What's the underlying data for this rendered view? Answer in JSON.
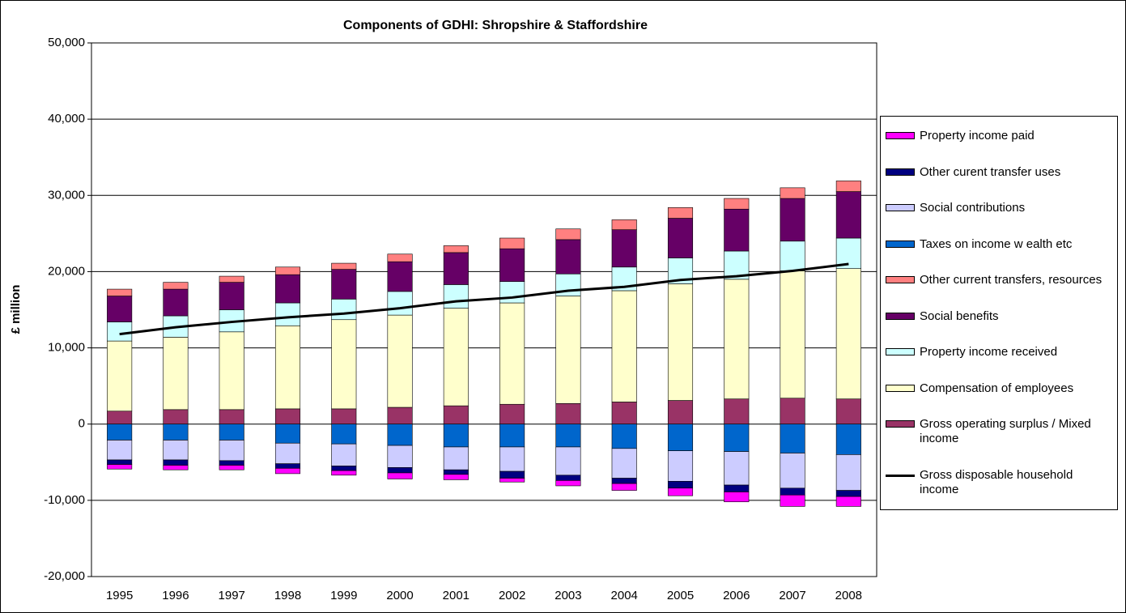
{
  "chart_data": {
    "type": "bar",
    "stacked": true,
    "title": "Components of GDHI: Shropshire & Staffordshire",
    "ylabel": "£ million",
    "categories": [
      "1995",
      "1996",
      "1997",
      "1998",
      "1999",
      "2000",
      "2001",
      "2002",
      "2003",
      "2004",
      "2005",
      "2006",
      "2007",
      "2008"
    ],
    "ylim": [
      -20000,
      50000
    ],
    "yticks": [
      {
        "value": -20000,
        "label": "-20,000"
      },
      {
        "value": -10000,
        "label": "-10,000"
      },
      0,
      {
        "value": 10000,
        "label": "10,000"
      },
      {
        "value": 20000,
        "label": "20,000"
      },
      {
        "value": 30000,
        "label": "30,000"
      },
      {
        "value": 40000,
        "label": "40,000"
      },
      {
        "value": 50000,
        "label": "50,000"
      }
    ],
    "grid": true,
    "legend": "right",
    "series": [
      {
        "name": "Property income paid",
        "color": "#ff00ff",
        "values": [
          -600,
          -600,
          -600,
          -700,
          -600,
          -800,
          -700,
          -500,
          -700,
          -900,
          -1000,
          -1300,
          -1500,
          -1300
        ]
      },
      {
        "name": "Other curent transfer uses",
        "color": "#000080",
        "values": [
          -600,
          -700,
          -600,
          -600,
          -600,
          -700,
          -600,
          -900,
          -700,
          -700,
          -900,
          -900,
          -900,
          -800
        ]
      },
      {
        "name": "Social contributions",
        "color": "#ccccff",
        "values": [
          -2600,
          -2600,
          -2700,
          -2700,
          -2900,
          -2900,
          -3000,
          -3200,
          -3700,
          -3900,
          -4000,
          -4400,
          -4600,
          -4700
        ]
      },
      {
        "name": "Taxes on income w ealth etc",
        "color": "#0066cc",
        "values": [
          -2100,
          -2100,
          -2100,
          -2500,
          -2600,
          -2800,
          -3000,
          -3000,
          -3000,
          -3200,
          -3500,
          -3600,
          -3800,
          -4000
        ]
      },
      {
        "name": "Other current transfers, resources",
        "color": "#ff8080",
        "values": [
          900,
          900,
          800,
          1000,
          800,
          1000,
          900,
          1400,
          1400,
          1300,
          1400,
          1400,
          1400,
          1400
        ]
      },
      {
        "name": "Social benefits",
        "color": "#660066",
        "values": [
          3400,
          3500,
          3600,
          3700,
          3900,
          3900,
          4200,
          4300,
          4500,
          4900,
          5200,
          5500,
          5600,
          6100
        ]
      },
      {
        "name": "Property income received",
        "color": "#ccffff",
        "values": [
          2500,
          2800,
          2900,
          3000,
          2700,
          3100,
          3100,
          2800,
          2900,
          3100,
          3400,
          3700,
          3900,
          4000
        ]
      },
      {
        "name": "Compensation of employees",
        "color": "#ffffcc",
        "values": [
          9200,
          9500,
          10200,
          10900,
          11700,
          12100,
          12800,
          13300,
          14100,
          14600,
          15300,
          15700,
          16700,
          17100
        ]
      },
      {
        "name": "Gross operating surplus / Mixed income",
        "color": "#993366",
        "values": [
          1700,
          1900,
          1900,
          2000,
          2000,
          2200,
          2400,
          2600,
          2700,
          2900,
          3100,
          3300,
          3400,
          3300
        ]
      },
      {
        "name": "Gross disposable household income",
        "color": "#000000",
        "type": "line",
        "values": [
          11800,
          12700,
          13400,
          14000,
          14500,
          15200,
          16100,
          16600,
          17500,
          18000,
          18900,
          19400,
          20100,
          21000
        ]
      }
    ]
  }
}
